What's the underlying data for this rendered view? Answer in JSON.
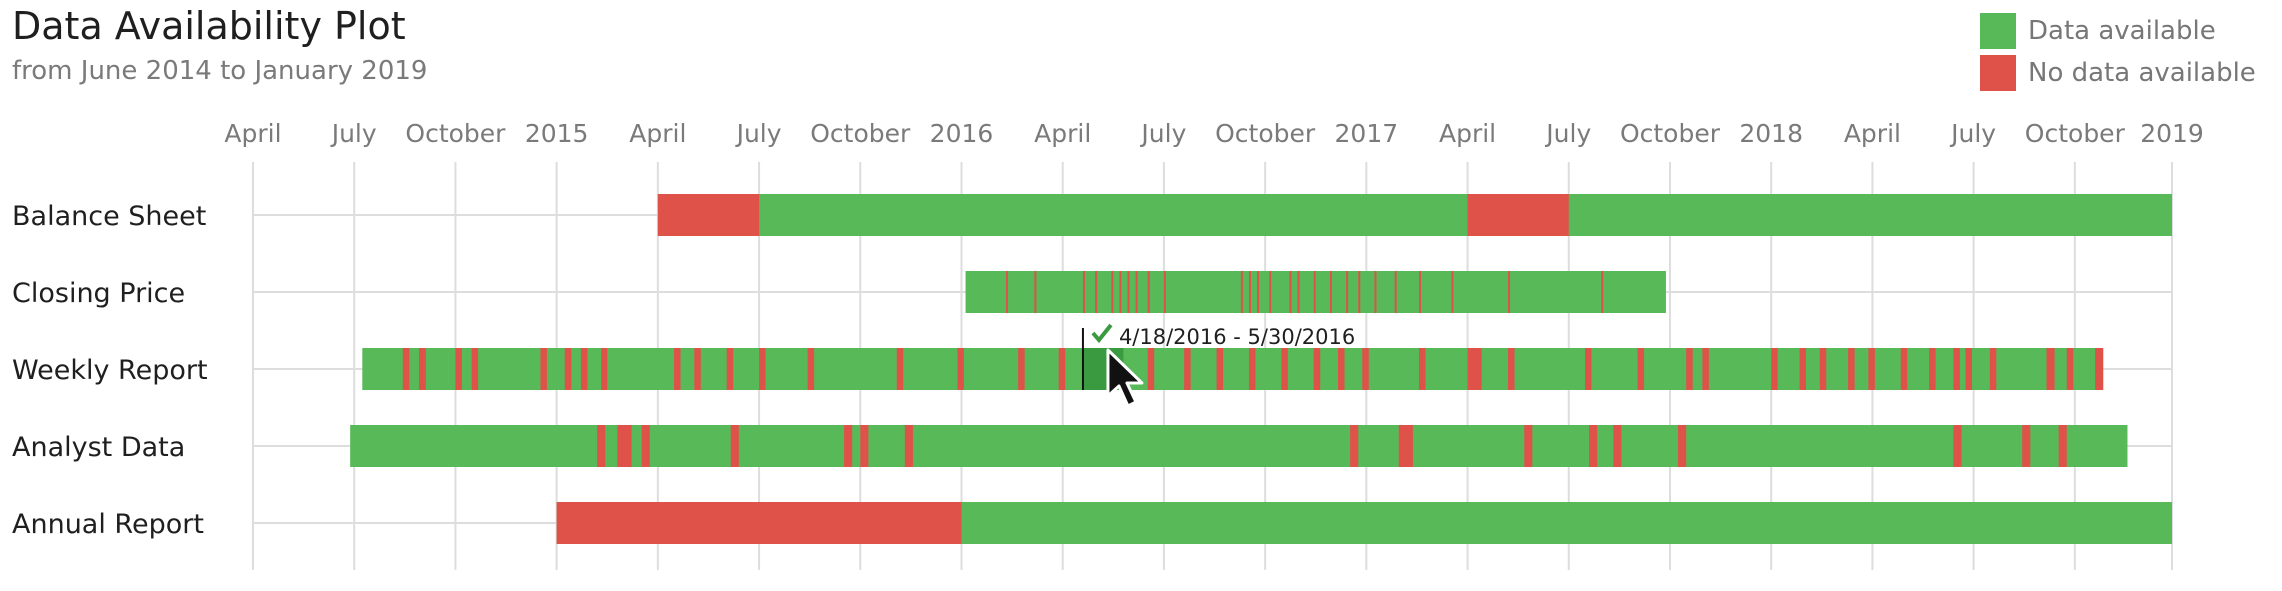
{
  "chart_data": {
    "type": "timeline",
    "title": "Data Availability Plot",
    "subtitle": "from June 2014 to January 2019",
    "colors": {
      "available": "#57b957",
      "unavailable": "#df524a",
      "highlight": "#3a9a3f",
      "grid": "#dddddd"
    },
    "legend": [
      {
        "label": "Data available",
        "color": "#57b957"
      },
      {
        "label": "No data available",
        "color": "#df524a"
      }
    ],
    "xaxis": {
      "start": 2015.25,
      "end": 2019.99,
      "ticks": [
        {
          "label": "April",
          "value": 2015.25
        },
        {
          "label": "July",
          "value": 2015.5
        },
        {
          "label": "October",
          "value": 2015.75
        },
        {
          "label": "2015",
          "value": 2016.0
        },
        {
          "label": "April",
          "value": 2016.25
        },
        {
          "label": "July",
          "value": 2016.5
        },
        {
          "label": "October",
          "value": 2016.75
        },
        {
          "label": "2016",
          "value": 2017.0
        },
        {
          "label": "April",
          "value": 2017.25
        },
        {
          "label": "July",
          "value": 2017.5
        },
        {
          "label": "October",
          "value": 2017.75
        },
        {
          "label": "2017",
          "value": 2018.0
        },
        {
          "label": "April",
          "value": 2018.25
        },
        {
          "label": "July",
          "value": 2018.5
        },
        {
          "label": "October",
          "value": 2018.75
        },
        {
          "label": "2018",
          "value": 2019.0
        },
        {
          "label": "April",
          "value": 2019.25
        },
        {
          "label": "July",
          "value": 2019.5
        },
        {
          "label": "October",
          "value": 2019.75
        },
        {
          "label": "2019",
          "value": 2019.99
        }
      ]
    },
    "rows": [
      {
        "label": "Balance Sheet",
        "start": 2016.25,
        "end": 2020.0,
        "gaps": [
          [
            2016.25,
            2016.5
          ],
          [
            2018.25,
            2018.5
          ]
        ]
      },
      {
        "label": "Closing Price",
        "start": 2017.01,
        "end": 2018.74,
        "gaps": [
          [
            2017.11,
            2017.114
          ],
          [
            2017.18,
            2017.184
          ],
          [
            2017.3,
            2017.304
          ],
          [
            2017.33,
            2017.334
          ],
          [
            2017.37,
            2017.374
          ],
          [
            2017.39,
            2017.394
          ],
          [
            2017.41,
            2017.414
          ],
          [
            2017.43,
            2017.434
          ],
          [
            2017.46,
            2017.464
          ],
          [
            2017.5,
            2017.504
          ],
          [
            2017.69,
            2017.694
          ],
          [
            2017.71,
            2017.714
          ],
          [
            2017.73,
            2017.734
          ],
          [
            2017.76,
            2017.764
          ],
          [
            2017.81,
            2017.814
          ],
          [
            2017.83,
            2017.834
          ],
          [
            2017.87,
            2017.874
          ],
          [
            2017.91,
            2017.914
          ],
          [
            2017.95,
            2017.954
          ],
          [
            2017.98,
            2017.984
          ],
          [
            2018.02,
            2018.024
          ],
          [
            2018.07,
            2018.074
          ],
          [
            2018.13,
            2018.134
          ],
          [
            2018.21,
            2018.214
          ],
          [
            2018.35,
            2018.354
          ],
          [
            2018.58,
            2018.584
          ]
        ]
      },
      {
        "label": "Weekly Report",
        "start": 2015.52,
        "end": 2019.82,
        "gaps": [
          [
            2015.62,
            2015.636
          ],
          [
            2015.66,
            2015.677
          ],
          [
            2015.75,
            2015.766
          ],
          [
            2015.79,
            2015.806
          ],
          [
            2015.96,
            2015.976
          ],
          [
            2016.02,
            2016.036
          ],
          [
            2016.06,
            2016.076
          ],
          [
            2016.11,
            2016.125
          ],
          [
            2016.29,
            2016.306
          ],
          [
            2016.34,
            2016.356
          ],
          [
            2016.42,
            2016.436
          ],
          [
            2016.5,
            2016.516
          ],
          [
            2016.62,
            2016.636
          ],
          [
            2016.84,
            2016.856
          ],
          [
            2016.99,
            2017.006
          ],
          [
            2017.14,
            2017.156
          ],
          [
            2017.24,
            2017.256
          ],
          [
            2017.31,
            2017.326
          ],
          [
            2017.37,
            2017.386
          ],
          [
            2017.46,
            2017.476
          ],
          [
            2017.55,
            2017.566
          ],
          [
            2017.63,
            2017.646
          ],
          [
            2017.71,
            2017.726
          ],
          [
            2017.79,
            2017.806
          ],
          [
            2017.87,
            2017.886
          ],
          [
            2017.93,
            2017.946
          ],
          [
            2017.99,
            2018.006
          ],
          [
            2018.13,
            2018.146
          ],
          [
            2018.25,
            2018.285
          ],
          [
            2018.35,
            2018.366
          ],
          [
            2018.54,
            2018.556
          ],
          [
            2018.67,
            2018.686
          ],
          [
            2018.79,
            2018.806
          ],
          [
            2018.83,
            2018.846
          ],
          [
            2019.0,
            2019.016
          ],
          [
            2019.07,
            2019.086
          ],
          [
            2019.12,
            2019.136
          ],
          [
            2019.19,
            2019.206
          ],
          [
            2019.24,
            2019.256
          ],
          [
            2019.32,
            2019.336
          ],
          [
            2019.39,
            2019.406
          ],
          [
            2019.45,
            2019.466
          ],
          [
            2019.48,
            2019.496
          ],
          [
            2019.54,
            2019.556
          ],
          [
            2019.68,
            2019.7
          ],
          [
            2019.73,
            2019.746
          ],
          [
            2019.8,
            2019.82
          ]
        ]
      },
      {
        "label": "Analyst Data",
        "start": 2015.49,
        "end": 2019.88,
        "gaps": [
          [
            2016.1,
            2016.12
          ],
          [
            2016.15,
            2016.185
          ],
          [
            2016.21,
            2016.23
          ],
          [
            2016.43,
            2016.45
          ],
          [
            2016.71,
            2016.73
          ],
          [
            2016.75,
            2016.77
          ],
          [
            2016.86,
            2016.88
          ],
          [
            2017.96,
            2017.98
          ],
          [
            2018.08,
            2018.115
          ],
          [
            2018.39,
            2018.41
          ],
          [
            2018.55,
            2018.57
          ],
          [
            2018.61,
            2018.63
          ],
          [
            2018.77,
            2018.79
          ],
          [
            2019.45,
            2019.47
          ],
          [
            2019.62,
            2019.64
          ],
          [
            2019.71,
            2019.73
          ]
        ]
      },
      {
        "label": "Annual Report",
        "start": 2016.0,
        "end": 2020.0,
        "gaps": [
          [
            2016.0,
            2017.0
          ]
        ]
      }
    ],
    "highlight": {
      "row": "Weekly Report",
      "start": 2017.3,
      "end": 2017.4,
      "text": "4/18/2016 - 5/30/2016"
    }
  }
}
